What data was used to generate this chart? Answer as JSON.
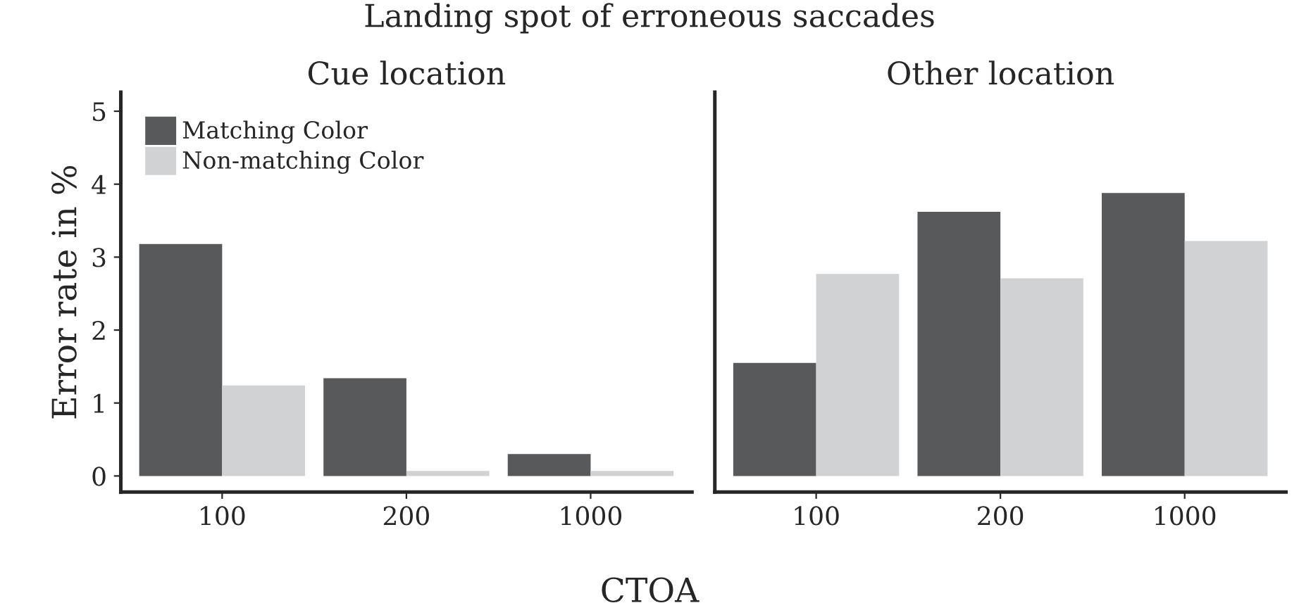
{
  "chart_data": [
    {
      "type": "bar",
      "title": "Cue location",
      "xlabel": "CTOA",
      "ylabel": "Error rate in %",
      "annotations": [
        "Landing spot of erroneous saccades"
      ],
      "categories": [
        "100",
        "200",
        "1000"
      ],
      "series": [
        {
          "name": "Matching Color",
          "color": "#58595b",
          "values": [
            3.18,
            1.34,
            0.3
          ]
        },
        {
          "name": "Non-matching Color",
          "color": "#d1d2d4",
          "values": [
            1.24,
            0.07,
            0.07
          ]
        }
      ],
      "ylim": [
        -0.22,
        5.26
      ],
      "yticks": [
        0,
        1,
        2,
        3,
        4,
        5
      ],
      "grid": false,
      "legend": "top left"
    },
    {
      "type": "bar",
      "title": "Other location",
      "categories": [
        "100",
        "200",
        "1000"
      ],
      "series": [
        {
          "color": "#58595b",
          "values": [
            1.55,
            3.62,
            3.88
          ]
        },
        {
          "color": "#d1d2d4",
          "values": [
            2.77,
            2.71,
            3.22
          ]
        }
      ],
      "ylim": [
        -0.22,
        5.26
      ],
      "yticks": [
        0,
        1,
        2,
        3,
        4,
        5
      ],
      "tick_labels": "x",
      "grid": false,
      "legend": false
    }
  ]
}
